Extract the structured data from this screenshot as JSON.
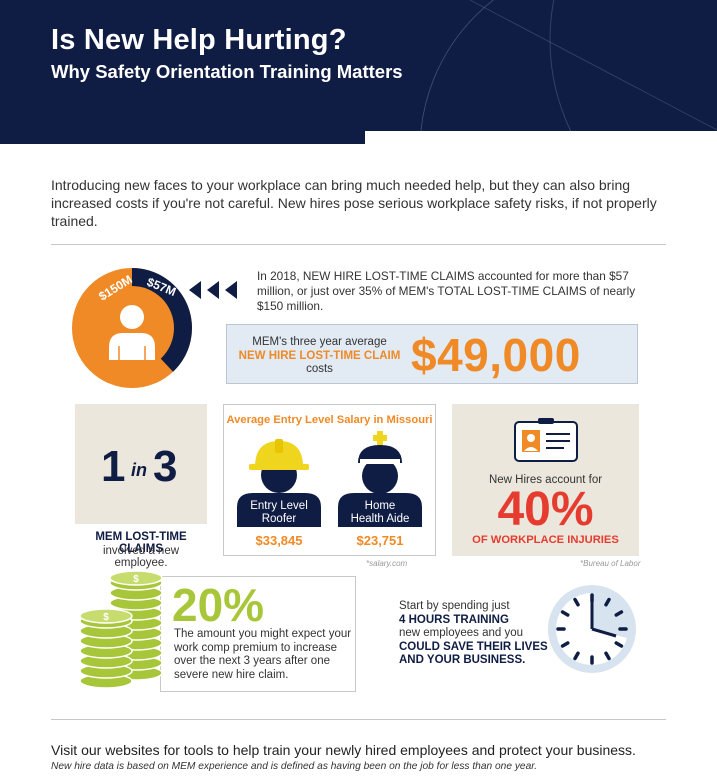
{
  "header": {
    "title": "Is New Help Hurting?",
    "subtitle": "Why Safety Orientation Training Matters"
  },
  "intro": "Introducing new faces to your workplace can bring much needed help, but they can also bring increased costs if you're not careful. New hires pose serious workplace safety risks, if not properly trained.",
  "pie": {
    "total_label": "$150M",
    "new_hire_label": "$57M",
    "new_hire_fraction": 0.38,
    "total_color": "#ef8a26",
    "new_hire_color": "#0f1d44"
  },
  "claims_text": "In 2018, NEW HIRE LOST-TIME CLAIMS accounted for more than $57 million, or just over 35% of MEM's TOTAL LOST-TIME CLAIMS of nearly $150 million.",
  "average_claim": {
    "line1": "MEM's three year average",
    "line2": "NEW HIRE LOST-TIME CLAIM",
    "line3": "costs",
    "amount": "$49,000"
  },
  "ratio": {
    "one": "1",
    "in": "in",
    "three": "3",
    "label_bold": "MEM LOST-TIME CLAIMS",
    "label": "involved a new employee."
  },
  "salary": {
    "title": "Average Entry Level Salary in Missouri",
    "jobs": [
      {
        "name": "Entry Level Roofer",
        "line1": "Entry Level",
        "line2": "Roofer",
        "pay": "$33,845",
        "icon": "hard-hat-worker-icon"
      },
      {
        "name": "Home Health Aide",
        "line1": "Home",
        "line2": "Health Aide",
        "pay": "$23,751",
        "icon": "nurse-icon"
      }
    ],
    "source": "*salary.com"
  },
  "injuries": {
    "label": "New Hires account for",
    "percent": "40%",
    "caption": "OF WORKPLACE INJURIES",
    "source": "*Bureau of Labor",
    "icon": "id-badge-icon"
  },
  "premium": {
    "percent": "20%",
    "text": "The amount you might expect your work comp premium to increase over the next 3 years after one severe new hire claim.",
    "icon": "coin-stacks-icon",
    "color": "#a8c63a"
  },
  "training": {
    "t1": "Start by spending just",
    "t2": "4 HOURS TRAINING",
    "t3": "new employees and you",
    "t4": "COULD SAVE THEIR LIVES AND YOUR BUSINESS.",
    "icon": "clock-icon"
  },
  "footer": {
    "visit": "Visit our websites for tools to help train your newly hired employees and protect your business.",
    "note": "New hire data is based on MEM experience and is defined as having been on the job for less than one year."
  }
}
